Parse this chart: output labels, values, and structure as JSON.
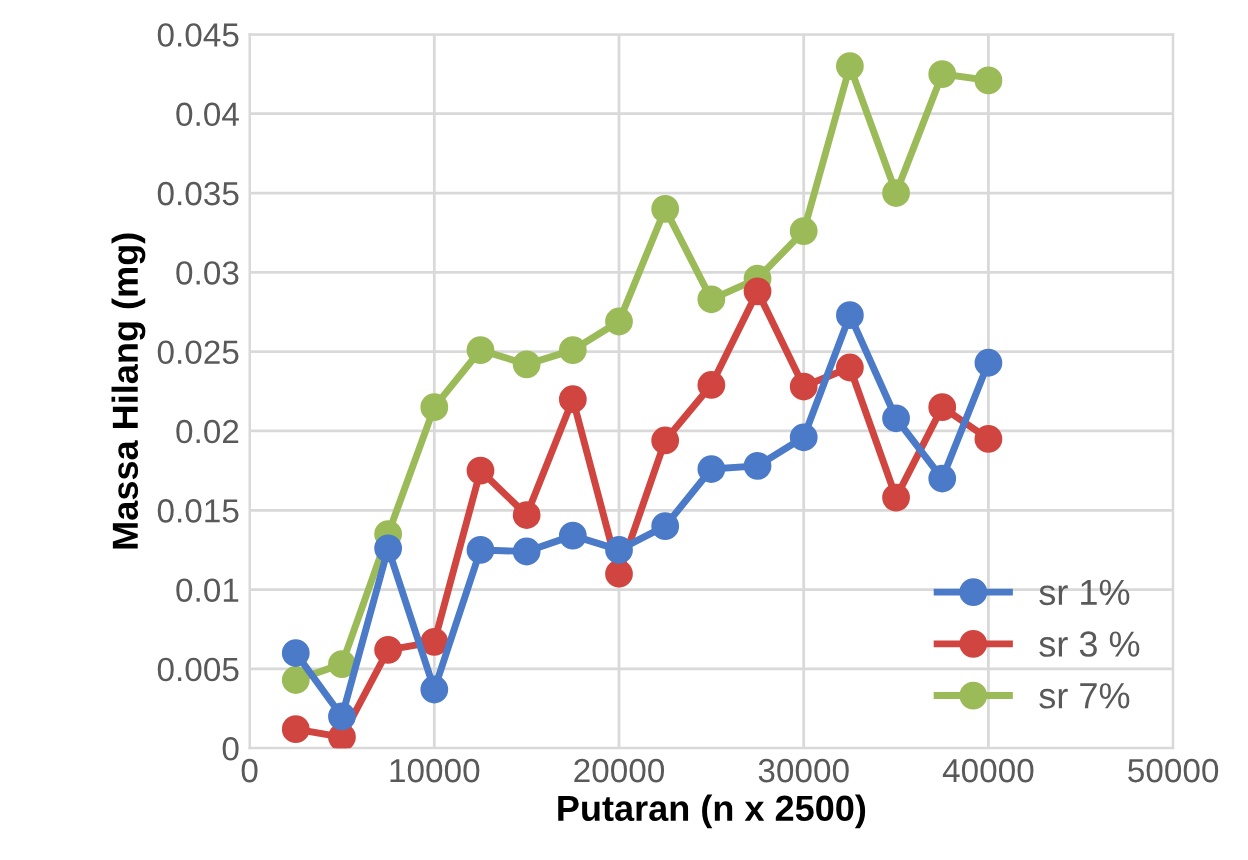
{
  "chart_data": {
    "type": "line",
    "xlabel": "Putaran (n x 2500)",
    "ylabel": "Massa Hilang (mg)",
    "x": [
      2500,
      5000,
      7500,
      10000,
      12500,
      15000,
      17500,
      20000,
      22500,
      25000,
      27500,
      30000,
      32500,
      35000,
      37500,
      40000
    ],
    "series": [
      {
        "name": "sr 1%",
        "color": "#4a7ac8",
        "values": [
          0.006,
          0.002,
          0.0126,
          0.0037,
          0.0125,
          0.0124,
          0.0134,
          0.0125,
          0.014,
          0.0176,
          0.0178,
          0.0196,
          0.0273,
          0.0208,
          0.017,
          0.0243
        ]
      },
      {
        "name": "sr 3 %",
        "color": "#d0453f",
        "values": [
          0.0012,
          0.0007,
          0.0062,
          0.0067,
          0.0175,
          0.0147,
          0.022,
          0.011,
          0.0194,
          0.0229,
          0.0288,
          0.0228,
          0.024,
          0.0158,
          0.0215,
          0.0195
        ]
      },
      {
        "name": "sr 7%",
        "color": "#9bbb59",
        "values": [
          0.0043,
          0.0053,
          0.0135,
          0.0215,
          0.0251,
          0.0242,
          0.0251,
          0.0269,
          0.034,
          0.0283,
          0.0296,
          0.0326,
          0.043,
          0.035,
          0.0425,
          0.0421
        ]
      }
    ],
    "xlim": [
      0,
      50000
    ],
    "xticks": [
      0,
      10000,
      20000,
      30000,
      40000,
      50000
    ],
    "ylim": [
      0,
      0.045
    ],
    "yticks": [
      0,
      0.005,
      0.01,
      0.015,
      0.02,
      0.025,
      0.03,
      0.035,
      0.04,
      0.045
    ],
    "grid": true,
    "legend": "bottom right",
    "marker": "circle",
    "line_style": "solid"
  }
}
